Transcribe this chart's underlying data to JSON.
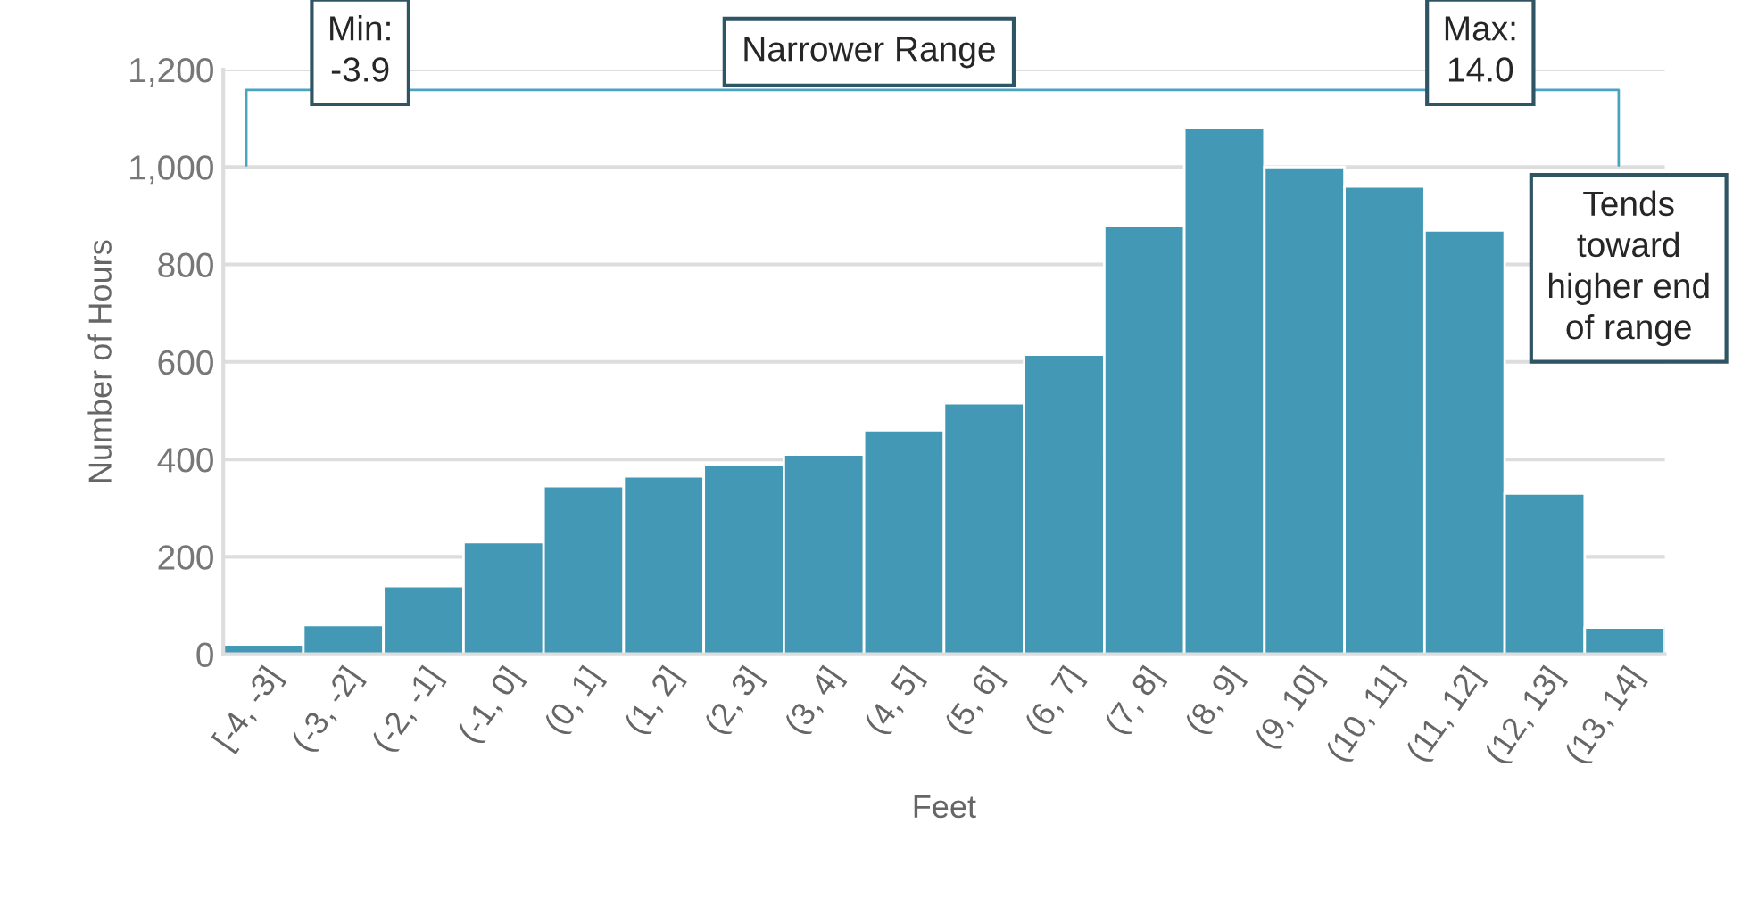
{
  "chart_data": {
    "type": "bar",
    "xlabel": "Feet",
    "ylabel": "Number of Hours",
    "categories": [
      "[-4, -3]",
      "(-3, -2]",
      "(-2, -1]",
      "(-1, 0]",
      "(0, 1]",
      "(1, 2]",
      "(2, 3]",
      "(3, 4]",
      "(4, 5]",
      "(5, 6]",
      "(6, 7]",
      "(7, 8]",
      "(8, 9]",
      "(9, 10]",
      "(10, 11]",
      "(11, 12]",
      "(12, 13]",
      "(13, 14]"
    ],
    "values": [
      20,
      60,
      140,
      230,
      345,
      365,
      390,
      410,
      460,
      515,
      615,
      880,
      1080,
      1000,
      960,
      870,
      330,
      55
    ],
    "color": "#4399b5",
    "ylim": [
      0,
      1200
    ],
    "yticks": [
      {
        "value": 0,
        "label": "0"
      },
      {
        "value": 200,
        "label": "200"
      },
      {
        "value": 400,
        "label": "400"
      },
      {
        "value": 600,
        "label": "600"
      },
      {
        "value": 800,
        "label": "800"
      },
      {
        "value": 1000,
        "label": "1,000"
      },
      {
        "value": 1200,
        "label": "1,200"
      }
    ],
    "grid": "y",
    "annotations": [
      "Min:\n-3.9",
      "Narrower Range",
      "Max:\n14.0",
      "Tends\ntoward\nhigher end\nof range"
    ]
  }
}
